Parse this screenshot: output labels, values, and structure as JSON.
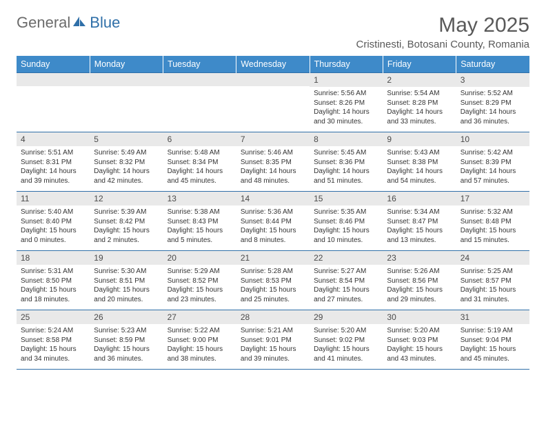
{
  "brand": {
    "part1": "General",
    "part2": "Blue"
  },
  "month_title": "May 2025",
  "location": "Cristinesti, Botosani County, Romania",
  "colors": {
    "header_bg": "#3e8ac9",
    "header_text": "#ffffff",
    "border": "#2f6fa8",
    "daynum_bg": "#e9e9e9",
    "text": "#333333",
    "title_text": "#595959"
  },
  "weekdays": [
    "Sunday",
    "Monday",
    "Tuesday",
    "Wednesday",
    "Thursday",
    "Friday",
    "Saturday"
  ],
  "weeks": [
    [
      {
        "empty": true
      },
      {
        "empty": true
      },
      {
        "empty": true
      },
      {
        "empty": true
      },
      {
        "num": "1",
        "sunrise": "Sunrise: 5:56 AM",
        "sunset": "Sunset: 8:26 PM",
        "daylight": "Daylight: 14 hours and 30 minutes."
      },
      {
        "num": "2",
        "sunrise": "Sunrise: 5:54 AM",
        "sunset": "Sunset: 8:28 PM",
        "daylight": "Daylight: 14 hours and 33 minutes."
      },
      {
        "num": "3",
        "sunrise": "Sunrise: 5:52 AM",
        "sunset": "Sunset: 8:29 PM",
        "daylight": "Daylight: 14 hours and 36 minutes."
      }
    ],
    [
      {
        "num": "4",
        "sunrise": "Sunrise: 5:51 AM",
        "sunset": "Sunset: 8:31 PM",
        "daylight": "Daylight: 14 hours and 39 minutes."
      },
      {
        "num": "5",
        "sunrise": "Sunrise: 5:49 AM",
        "sunset": "Sunset: 8:32 PM",
        "daylight": "Daylight: 14 hours and 42 minutes."
      },
      {
        "num": "6",
        "sunrise": "Sunrise: 5:48 AM",
        "sunset": "Sunset: 8:34 PM",
        "daylight": "Daylight: 14 hours and 45 minutes."
      },
      {
        "num": "7",
        "sunrise": "Sunrise: 5:46 AM",
        "sunset": "Sunset: 8:35 PM",
        "daylight": "Daylight: 14 hours and 48 minutes."
      },
      {
        "num": "8",
        "sunrise": "Sunrise: 5:45 AM",
        "sunset": "Sunset: 8:36 PM",
        "daylight": "Daylight: 14 hours and 51 minutes."
      },
      {
        "num": "9",
        "sunrise": "Sunrise: 5:43 AM",
        "sunset": "Sunset: 8:38 PM",
        "daylight": "Daylight: 14 hours and 54 minutes."
      },
      {
        "num": "10",
        "sunrise": "Sunrise: 5:42 AM",
        "sunset": "Sunset: 8:39 PM",
        "daylight": "Daylight: 14 hours and 57 minutes."
      }
    ],
    [
      {
        "num": "11",
        "sunrise": "Sunrise: 5:40 AM",
        "sunset": "Sunset: 8:40 PM",
        "daylight": "Daylight: 15 hours and 0 minutes."
      },
      {
        "num": "12",
        "sunrise": "Sunrise: 5:39 AM",
        "sunset": "Sunset: 8:42 PM",
        "daylight": "Daylight: 15 hours and 2 minutes."
      },
      {
        "num": "13",
        "sunrise": "Sunrise: 5:38 AM",
        "sunset": "Sunset: 8:43 PM",
        "daylight": "Daylight: 15 hours and 5 minutes."
      },
      {
        "num": "14",
        "sunrise": "Sunrise: 5:36 AM",
        "sunset": "Sunset: 8:44 PM",
        "daylight": "Daylight: 15 hours and 8 minutes."
      },
      {
        "num": "15",
        "sunrise": "Sunrise: 5:35 AM",
        "sunset": "Sunset: 8:46 PM",
        "daylight": "Daylight: 15 hours and 10 minutes."
      },
      {
        "num": "16",
        "sunrise": "Sunrise: 5:34 AM",
        "sunset": "Sunset: 8:47 PM",
        "daylight": "Daylight: 15 hours and 13 minutes."
      },
      {
        "num": "17",
        "sunrise": "Sunrise: 5:32 AM",
        "sunset": "Sunset: 8:48 PM",
        "daylight": "Daylight: 15 hours and 15 minutes."
      }
    ],
    [
      {
        "num": "18",
        "sunrise": "Sunrise: 5:31 AM",
        "sunset": "Sunset: 8:50 PM",
        "daylight": "Daylight: 15 hours and 18 minutes."
      },
      {
        "num": "19",
        "sunrise": "Sunrise: 5:30 AM",
        "sunset": "Sunset: 8:51 PM",
        "daylight": "Daylight: 15 hours and 20 minutes."
      },
      {
        "num": "20",
        "sunrise": "Sunrise: 5:29 AM",
        "sunset": "Sunset: 8:52 PM",
        "daylight": "Daylight: 15 hours and 23 minutes."
      },
      {
        "num": "21",
        "sunrise": "Sunrise: 5:28 AM",
        "sunset": "Sunset: 8:53 PM",
        "daylight": "Daylight: 15 hours and 25 minutes."
      },
      {
        "num": "22",
        "sunrise": "Sunrise: 5:27 AM",
        "sunset": "Sunset: 8:54 PM",
        "daylight": "Daylight: 15 hours and 27 minutes."
      },
      {
        "num": "23",
        "sunrise": "Sunrise: 5:26 AM",
        "sunset": "Sunset: 8:56 PM",
        "daylight": "Daylight: 15 hours and 29 minutes."
      },
      {
        "num": "24",
        "sunrise": "Sunrise: 5:25 AM",
        "sunset": "Sunset: 8:57 PM",
        "daylight": "Daylight: 15 hours and 31 minutes."
      }
    ],
    [
      {
        "num": "25",
        "sunrise": "Sunrise: 5:24 AM",
        "sunset": "Sunset: 8:58 PM",
        "daylight": "Daylight: 15 hours and 34 minutes."
      },
      {
        "num": "26",
        "sunrise": "Sunrise: 5:23 AM",
        "sunset": "Sunset: 8:59 PM",
        "daylight": "Daylight: 15 hours and 36 minutes."
      },
      {
        "num": "27",
        "sunrise": "Sunrise: 5:22 AM",
        "sunset": "Sunset: 9:00 PM",
        "daylight": "Daylight: 15 hours and 38 minutes."
      },
      {
        "num": "28",
        "sunrise": "Sunrise: 5:21 AM",
        "sunset": "Sunset: 9:01 PM",
        "daylight": "Daylight: 15 hours and 39 minutes."
      },
      {
        "num": "29",
        "sunrise": "Sunrise: 5:20 AM",
        "sunset": "Sunset: 9:02 PM",
        "daylight": "Daylight: 15 hours and 41 minutes."
      },
      {
        "num": "30",
        "sunrise": "Sunrise: 5:20 AM",
        "sunset": "Sunset: 9:03 PM",
        "daylight": "Daylight: 15 hours and 43 minutes."
      },
      {
        "num": "31",
        "sunrise": "Sunrise: 5:19 AM",
        "sunset": "Sunset: 9:04 PM",
        "daylight": "Daylight: 15 hours and 45 minutes."
      }
    ]
  ]
}
